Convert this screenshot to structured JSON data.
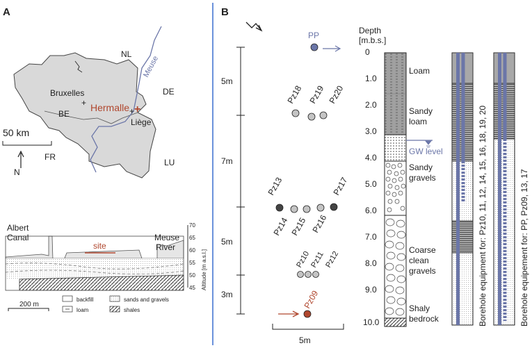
{
  "panel_a": {
    "label": "A",
    "map": {
      "countries": [
        "NL",
        "DE",
        "BE",
        "FR",
        "LU"
      ],
      "cities": [
        "Bruxelles",
        "Liège"
      ],
      "river": "Meuse",
      "site": "Hermalle",
      "scale": "50 km",
      "north": "N"
    },
    "section": {
      "albert_canal_1": "Albert",
      "albert_canal_2": "Canal",
      "site": "site",
      "meuse_1": "Meuse",
      "meuse_2": "River",
      "altitude_label": "Altitude [m a.s.l.]",
      "altitude_ticks": [
        "70",
        "65",
        "60",
        "55",
        "50",
        "45"
      ],
      "scale": "200 m",
      "legend": [
        "backfill",
        "sands and gravels",
        "loam",
        "shales"
      ]
    }
  },
  "panel_b": {
    "label": "B",
    "north": "N",
    "wells": {
      "pp": "PP",
      "pz18": "Pz18",
      "pz19": "Pz19",
      "pz20": "Pz20",
      "pz13": "Pz13",
      "pz17": "Pz17",
      "pz14": "Pz14",
      "pz15": "Pz15",
      "pz16": "Pz16",
      "pz10": "Pz10",
      "pz11": "Pz11",
      "pz12": "Pz12",
      "pz09": "Pz09"
    },
    "spacings": [
      "5m",
      "7m",
      "5m",
      "3m"
    ],
    "h_scale": "5m",
    "depth_title_1": "Depth",
    "depth_title_2": "[m.b.s.]",
    "depth_ticks": [
      "0",
      "1.0",
      "2.0",
      "3.0",
      "4.0",
      "5.0",
      "6.0",
      "7.0",
      "8.0",
      "9.0",
      "10.0"
    ],
    "layers": {
      "loam": "Loam",
      "sandy_loam_1": "Sandy",
      "sandy_loam_2": "loam",
      "gw": "GW level",
      "sandy_gravels_1": "Sandy",
      "sandy_gravels_2": "gravels",
      "coarse_1": "Coarse",
      "coarse_2": "clean",
      "coarse_3": "gravels",
      "shaly_1": "Shaly",
      "shaly_2": "bedrock"
    },
    "equipment_1": "Borehole equipment for: Pz10, 11, 12, 14, 15, 16, 18, 19, 20",
    "equipment_2": "Borehole equipement for: PP, Pz09, 13, 17"
  },
  "colors": {
    "accent_blue": "#6b76a8",
    "accent_red": "#b0472e",
    "belgium": "#d9d9d9",
    "divider": "#3a6fcf"
  }
}
